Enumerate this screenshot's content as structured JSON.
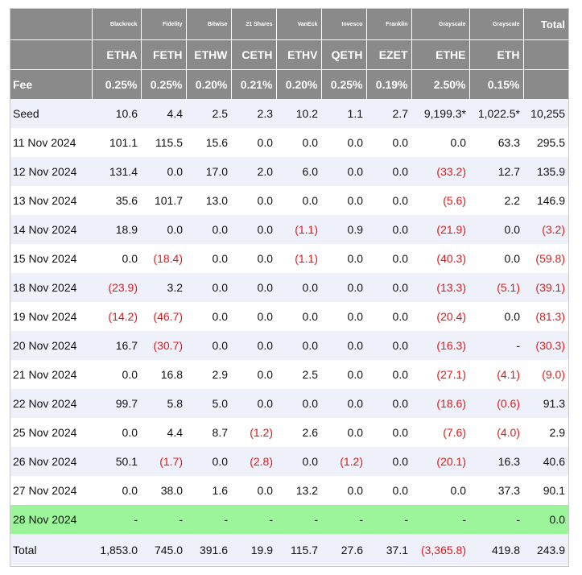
{
  "table": {
    "header_issuers": [
      "",
      "Blackrock",
      "Fidelity",
      "Bitwise",
      "21 Shares",
      "VanEck",
      "Invesco",
      "Franklin",
      "Grayscale",
      "Grayscale",
      "Total"
    ],
    "header_tickers": [
      "",
      "ETHA",
      "FETH",
      "ETHW",
      "CETH",
      "ETHV",
      "QETH",
      "EZET",
      "ETHE",
      "ETH",
      ""
    ],
    "fee_row": [
      "Fee",
      "0.25%",
      "0.25%",
      "0.20%",
      "0.21%",
      "0.20%",
      "0.25%",
      "0.19%",
      "2.50%",
      "0.15%",
      ""
    ],
    "rows": [
      {
        "cells": [
          "Seed",
          "10.6",
          "4.4",
          "2.5",
          "2.3",
          "10.2",
          "1.1",
          "2.7",
          "9,199.3*",
          "1,022.5*",
          "10,255"
        ]
      },
      {
        "cells": [
          "11 Nov 2024",
          "101.1",
          "115.5",
          "15.6",
          "0.0",
          "0.0",
          "0.0",
          "0.0",
          "0.0",
          "63.3",
          "295.5"
        ]
      },
      {
        "cells": [
          "12 Nov 2024",
          "131.4",
          "0.0",
          "17.0",
          "2.0",
          "6.0",
          "0.0",
          "0.0",
          "(33.2)",
          "12.7",
          "135.9"
        ]
      },
      {
        "cells": [
          "13 Nov 2024",
          "35.6",
          "101.7",
          "13.0",
          "0.0",
          "0.0",
          "0.0",
          "0.0",
          "(5.6)",
          "2.2",
          "146.9"
        ]
      },
      {
        "cells": [
          "14 Nov 2024",
          "18.9",
          "0.0",
          "0.0",
          "0.0",
          "(1.1)",
          "0.9",
          "0.0",
          "(21.9)",
          "0.0",
          "(3.2)"
        ]
      },
      {
        "cells": [
          "15 Nov 2024",
          "0.0",
          "(18.4)",
          "0.0",
          "0.0",
          "(1.1)",
          "0.0",
          "0.0",
          "(40.3)",
          "0.0",
          "(59.8)"
        ]
      },
      {
        "cells": [
          "18 Nov 2024",
          "(23.9)",
          "3.2",
          "0.0",
          "0.0",
          "0.0",
          "0.0",
          "0.0",
          "(13.3)",
          "(5.1)",
          "(39.1)"
        ]
      },
      {
        "cells": [
          "19 Nov 2024",
          "(14.2)",
          "(46.7)",
          "0.0",
          "0.0",
          "0.0",
          "0.0",
          "0.0",
          "(20.4)",
          "0.0",
          "(81.3)"
        ]
      },
      {
        "cells": [
          "20 Nov 2024",
          "16.7",
          "(30.7)",
          "0.0",
          "0.0",
          "0.0",
          "0.0",
          "0.0",
          "(16.3)",
          "-",
          "(30.3)"
        ]
      },
      {
        "cells": [
          "21 Nov 2024",
          "0.0",
          "16.8",
          "2.9",
          "0.0",
          "2.5",
          "0.0",
          "0.0",
          "(27.1)",
          "(4.1)",
          "(9.0)"
        ]
      },
      {
        "cells": [
          "22 Nov 2024",
          "99.7",
          "5.8",
          "5.0",
          "0.0",
          "0.0",
          "0.0",
          "0.0",
          "(18.6)",
          "(0.6)",
          "91.3"
        ]
      },
      {
        "cells": [
          "25 Nov 2024",
          "0.0",
          "4.4",
          "8.7",
          "(1.2)",
          "2.6",
          "0.0",
          "0.0",
          "(7.6)",
          "(4.0)",
          "2.9"
        ]
      },
      {
        "cells": [
          "26 Nov 2024",
          "50.1",
          "(1.7)",
          "0.0",
          "(2.8)",
          "0.0",
          "(1.2)",
          "0.0",
          "(20.1)",
          "16.3",
          "40.6"
        ]
      },
      {
        "cells": [
          "27 Nov 2024",
          "0.0",
          "38.0",
          "1.6",
          "0.0",
          "13.2",
          "0.0",
          "0.0",
          "0.0",
          "37.3",
          "90.1"
        ]
      },
      {
        "cells": [
          "28 Nov 2024",
          "-",
          "-",
          "-",
          "-",
          "-",
          "-",
          "-",
          "-",
          "-",
          "0.0"
        ]
      }
    ],
    "total_row": [
      "Total",
      "1,853.0",
      "745.0",
      "391.6",
      "19.9",
      "115.7",
      "27.6",
      "37.1",
      "(3,365.8)",
      "419.8",
      "243.9"
    ]
  },
  "colors": {
    "header_bg": "#8a8a8a",
    "row_shade": "#eef0fa",
    "highlight_row": "#9cf59a",
    "negative": "#e1191b"
  }
}
